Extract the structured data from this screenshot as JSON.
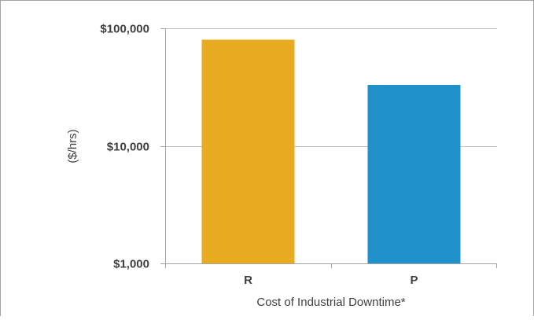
{
  "chart_data": {
    "type": "bar",
    "scale": "log",
    "categories": [
      "R",
      "P"
    ],
    "values": [
      80000,
      33000
    ],
    "bar_colors": [
      "#E9AB1F",
      "#2191CB"
    ],
    "yticks": [
      1000,
      10000,
      100000
    ],
    "ytick_labels": [
      "$1,000",
      "$10,000",
      "$100,000"
    ],
    "ylim": [
      1000,
      100000
    ],
    "ylabel": "($/hrs)",
    "xlabel": "Cost of Industrial Downtime*",
    "grid": true,
    "legend": "none"
  },
  "colors": {
    "frame": "#A3A3A3",
    "grid": "#BDBDBD",
    "text": "#3F3F3F"
  }
}
